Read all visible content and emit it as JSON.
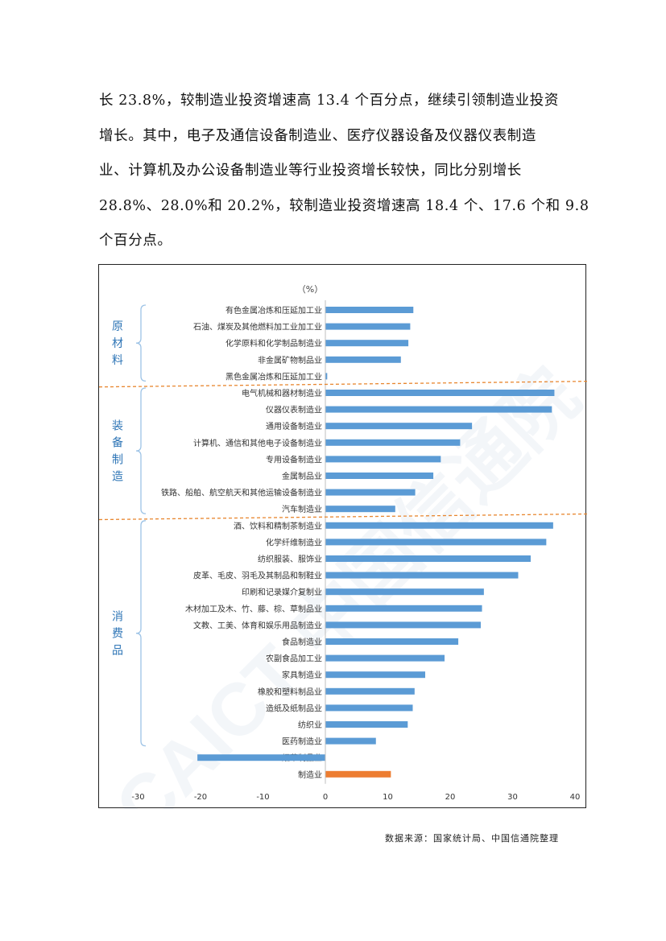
{
  "paragraph": {
    "lines": [
      "长 23.8%，较制造业投资增速高 13.4 个百分点，继续引领制造业投资",
      "增长。其中，电子及通信设备制造业、医疗仪器设备及仪器仪表制造",
      "业、计算机及办公设备制造业等行业投资增长较快，同比分别增长",
      "28.8%、28.0%和 20.2%，较制造业投资增速高 18.4 个、17.6 个和 9.8",
      "个百分点。"
    ]
  },
  "source_note": "数据来源：国家统计局、中国信通院整理",
  "colors": {
    "bar": "#5b9bd5",
    "highlight": "#ed7d31",
    "group_line": "#9dc3e6",
    "separator": "#e8862f"
  },
  "chart_data": {
    "type": "bar",
    "orientation": "horizontal",
    "unit_label": "（%）",
    "xlim": [
      -30,
      40
    ],
    "xticks": [
      -30,
      -20,
      -10,
      0,
      10,
      20,
      30,
      40
    ],
    "groups": [
      {
        "name": "原材料",
        "chars": [
          "原",
          "材",
          "料"
        ],
        "count": 5
      },
      {
        "name": "装备制造",
        "chars": [
          "装",
          "备",
          "制",
          "造"
        ],
        "count": 8
      },
      {
        "name": "消费品",
        "chars": [
          "消",
          "费",
          "品"
        ],
        "count": 14
      }
    ],
    "categories": [
      "有色金属冶炼和压延加工业",
      "石油、煤炭及其他燃料加工业加工业",
      "化学原料和化学制品制造业",
      "非金属矿物制品业",
      "黑色金属冶炼和压延加工业",
      "电气机械和器材制造业",
      "仪器仪表制造业",
      "通用设备制造业",
      "计算机、通信和其他电子设备制造业",
      "专用设备制造业",
      "金属制品业",
      "铁路、船舶、航空航天和其他运输设备制造业",
      "汽车制造业",
      "酒、饮料和精制茶制造业",
      "化学纤维制造业",
      "纺织服装、服饰业",
      "皮革、毛皮、羽毛及其制品和制鞋业",
      "印刷和记录媒介复制业",
      "木材加工及木、竹、藤、棕、草制品业",
      "文教、工美、体育和娱乐用品制造业",
      "食品制造业",
      "农副食品加工业",
      "家具制造业",
      "橡胶和塑料制品业",
      "造纸及纸制品业",
      "纺织业",
      "医药制造业",
      "烟草制品业",
      "制造业"
    ],
    "values": [
      14.1,
      13.6,
      13.3,
      12.1,
      0.3,
      36.7,
      36.3,
      23.5,
      21.6,
      18.5,
      17.3,
      14.4,
      11.2,
      36.5,
      35.4,
      32.9,
      30.9,
      25.4,
      25.1,
      24.9,
      21.3,
      19.1,
      16.0,
      14.3,
      14.0,
      13.2,
      8.1,
      -20.5,
      10.5
    ],
    "highlight_index": 28
  }
}
